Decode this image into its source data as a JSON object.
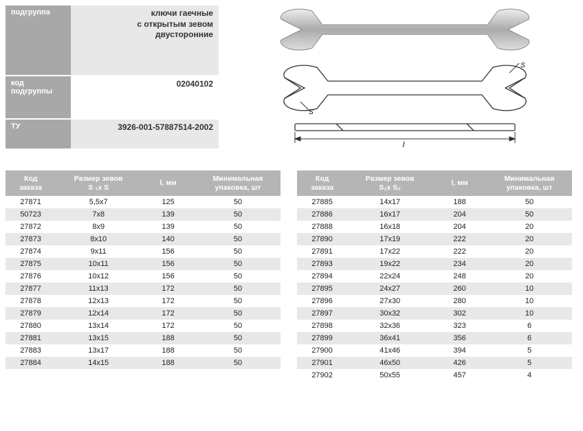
{
  "info": {
    "labels": {
      "subgroup": "подгруппа",
      "subgroup_code": "код подгруппы",
      "tu": "ТУ"
    },
    "values": {
      "subgroup": "ключи гаечные\nс открытым зевом\nдвусторонние",
      "subgroup_code": "02040102",
      "tu": "3926-001-57887514-2002"
    }
  },
  "headers": {
    "code": "Код\nзаказа",
    "size1": "Размер зевов\nS ₁x S",
    "size2": "Размер зевов\nS₁x S₂",
    "length": "l, мм",
    "pack": "Минимальная\nупаковка, шт"
  },
  "diagram_labels": {
    "l": "l",
    "s": "S"
  },
  "table1": {
    "rows": [
      {
        "code": "27871",
        "size": "5,5x7",
        "len": "125",
        "pack": "50"
      },
      {
        "code": "50723",
        "size": "7x8",
        "len": "139",
        "pack": "50"
      },
      {
        "code": "27872",
        "size": "8x9",
        "len": "139",
        "pack": "50"
      },
      {
        "code": "27873",
        "size": "8x10",
        "len": "140",
        "pack": "50"
      },
      {
        "code": "27874",
        "size": "9x11",
        "len": "156",
        "pack": "50"
      },
      {
        "code": "27875",
        "size": "10x11",
        "len": "156",
        "pack": "50"
      },
      {
        "code": "27876",
        "size": "10x12",
        "len": "156",
        "pack": "50"
      },
      {
        "code": "27877",
        "size": "11x13",
        "len": "172",
        "pack": "50"
      },
      {
        "code": "27878",
        "size": "12x13",
        "len": "172",
        "pack": "50"
      },
      {
        "code": "27879",
        "size": "12x14",
        "len": "172",
        "pack": "50"
      },
      {
        "code": "27880",
        "size": "13x14",
        "len": "172",
        "pack": "50"
      },
      {
        "code": "27881",
        "size": "13x15",
        "len": "188",
        "pack": "50"
      },
      {
        "code": "27883",
        "size": "13x17",
        "len": "188",
        "pack": "50"
      },
      {
        "code": "27884",
        "size": "14x15",
        "len": "188",
        "pack": "50"
      }
    ]
  },
  "table2": {
    "rows": [
      {
        "code": "27885",
        "size": "14x17",
        "len": "188",
        "pack": "50"
      },
      {
        "code": "27886",
        "size": "16x17",
        "len": "204",
        "pack": "50"
      },
      {
        "code": "27888",
        "size": "16x18",
        "len": "204",
        "pack": "20"
      },
      {
        "code": "27890",
        "size": "17x19",
        "len": "222",
        "pack": "20"
      },
      {
        "code": "27891",
        "size": "17x22",
        "len": "222",
        "pack": "20"
      },
      {
        "code": "27893",
        "size": "19x22",
        "len": "234",
        "pack": "20"
      },
      {
        "code": "27894",
        "size": "22x24",
        "len": "248",
        "pack": "20"
      },
      {
        "code": "27895",
        "size": "24x27",
        "len": "260",
        "pack": "10"
      },
      {
        "code": "27896",
        "size": "27x30",
        "len": "280",
        "pack": "10"
      },
      {
        "code": "27897",
        "size": "30x32",
        "len": "302",
        "pack": "10"
      },
      {
        "code": "27898",
        "size": "32x36",
        "len": "323",
        "pack": "6"
      },
      {
        "code": "27899",
        "size": "36x41",
        "len": "356",
        "pack": "6"
      },
      {
        "code": "27900",
        "size": "41x46",
        "len": "394",
        "pack": "5"
      },
      {
        "code": "27901",
        "size": "46x50",
        "len": "426",
        "pack": "5"
      },
      {
        "code": "27902",
        "size": "50x55",
        "len": "457",
        "pack": "4"
      }
    ]
  },
  "colors": {
    "header_bg": "#b5b5b5",
    "label_bg": "#a8a8a8",
    "row_alt": "#e8e8e8",
    "text": "#222222"
  }
}
